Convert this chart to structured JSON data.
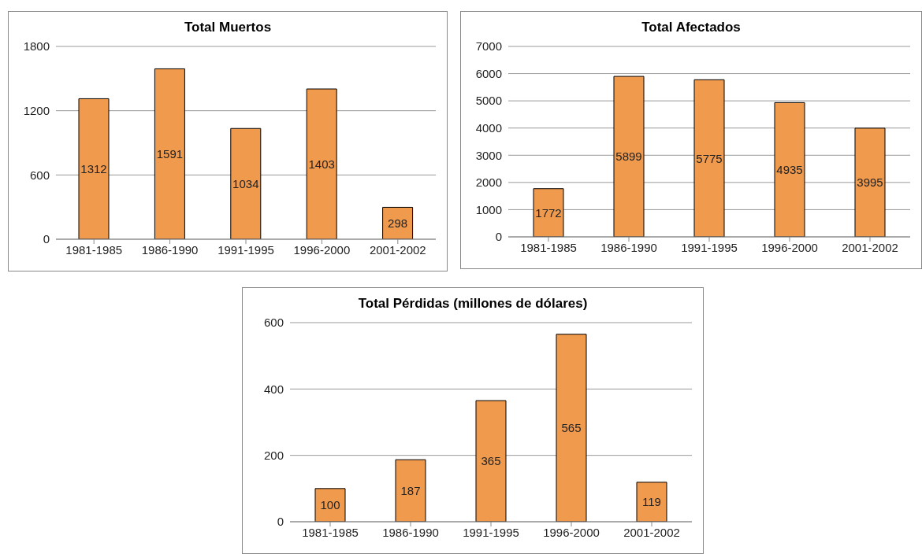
{
  "chart_data": [
    {
      "type": "bar",
      "title": "Total Muertos",
      "categories": [
        "1981-1985",
        "1986-1990",
        "1991-1995",
        "1996-2000",
        "2001-2002"
      ],
      "values": [
        1312,
        1591,
        1034,
        1403,
        298
      ],
      "color": "#f09a4e",
      "ylim": [
        0,
        1800
      ],
      "yticks": [
        0,
        600,
        1200,
        1800
      ],
      "grid": "y",
      "data_labels": true
    },
    {
      "type": "bar",
      "title": "Total Afectados",
      "categories": [
        "1981-1985",
        "1986-1990",
        "1991-1995",
        "1996-2000",
        "2001-2002"
      ],
      "values": [
        1772,
        5899,
        5775,
        4935,
        3995
      ],
      "color": "#f09a4e",
      "ylim": [
        0,
        7000
      ],
      "yticks": [
        0,
        1000,
        2000,
        3000,
        4000,
        5000,
        6000,
        7000
      ],
      "grid": "y",
      "data_labels": true
    },
    {
      "type": "bar",
      "title": "Total Pérdidas (millones de dólares)",
      "categories": [
        "1981-1985",
        "1986-1990",
        "1991-1995",
        "1996-2000",
        "2001-2002"
      ],
      "values": [
        100,
        187,
        365,
        565,
        119
      ],
      "color": "#f09a4e",
      "ylim": [
        0,
        600
      ],
      "yticks": [
        0,
        200,
        400,
        600
      ],
      "grid": "y",
      "data_labels": true
    }
  ]
}
